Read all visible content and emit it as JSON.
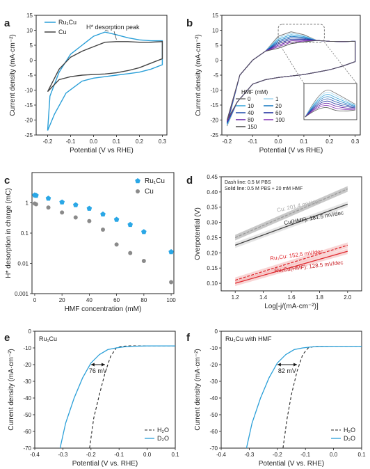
{
  "colors": {
    "blue": "#2a9fd8",
    "gray": "#444444",
    "lightgray": "#9a9a9a",
    "red": "#e0282e",
    "ruPoint": "#2aa7e6",
    "cuPoint": "#8a8a8a"
  },
  "chart_data": [
    {
      "panel_label": "a",
      "type": "line",
      "xlabel": "Potential (V vs RHE)",
      "ylabel": "Current density (mA·cm⁻²)",
      "xlim": [
        -0.25,
        0.32
      ],
      "ylim": [
        -25,
        15
      ],
      "xticks": [
        "-0.2",
        "-0.1",
        "0.0",
        "0.1",
        "0.2",
        "0.3"
      ],
      "yticks": [
        "-25",
        "-20",
        "-15",
        "-10",
        "-5",
        "0",
        "5",
        "10",
        "15"
      ],
      "legend": [
        "Ru₁Cu",
        "Cu"
      ],
      "annotation": "H* desorption peak",
      "series": [
        {
          "name": "Ru₁Cu",
          "color": "blue",
          "x": [
            -0.2,
            -0.17,
            -0.12,
            -0.05,
            0.0,
            0.05,
            0.1,
            0.15,
            0.2,
            0.25,
            0.3,
            0.3,
            0.25,
            0.2,
            0.15,
            0.1,
            0.05,
            0.0,
            -0.05,
            -0.1,
            -0.15,
            -0.19,
            -0.2
          ],
          "y": [
            -23.5,
            -18,
            -11,
            -7,
            -6,
            -5.5,
            -5,
            -4.5,
            -4,
            -3,
            -1.5,
            6.5,
            6.5,
            6.8,
            7.5,
            8.5,
            9.4,
            8,
            5,
            2,
            -4,
            -12,
            -23.5
          ]
        },
        {
          "name": "Cu",
          "color": "gray",
          "x": [
            -0.2,
            -0.15,
            -0.1,
            -0.05,
            0.0,
            0.05,
            0.1,
            0.15,
            0.2,
            0.25,
            0.3,
            0.3,
            0.25,
            0.2,
            0.15,
            0.1,
            0.05,
            0.0,
            -0.05,
            -0.1,
            -0.15,
            -0.2
          ],
          "y": [
            -10.5,
            -6.5,
            -5.5,
            -5,
            -4.8,
            -4.6,
            -4.2,
            -3.5,
            -2.5,
            -1,
            0.5,
            6.2,
            6,
            6,
            6.2,
            6.2,
            6,
            4.5,
            3,
            1,
            -3,
            -10.5
          ]
        }
      ]
    },
    {
      "panel_label": "b",
      "type": "line",
      "xlabel": "Potential (V vs RHE)",
      "ylabel": "Current density (mA·cm⁻²)",
      "xlim": [
        -0.22,
        0.32
      ],
      "ylim": [
        -25,
        15
      ],
      "xticks": [
        "-0.2",
        "-0.1",
        "0.0",
        "0.1",
        "0.2",
        "0.3"
      ],
      "yticks": [
        "-25",
        "-20",
        "-15",
        "-10",
        "-5",
        "0",
        "5",
        "10",
        "15"
      ],
      "legend_title": "HMF (mM)",
      "legend": [
        "0",
        "1",
        "10",
        "20",
        "40",
        "60",
        "80",
        "100",
        "150"
      ],
      "series_colors": [
        "#7a7a7a",
        "#a6d8f0",
        "#3da9de",
        "#1f7fc4",
        "#2a55b0",
        "#2233a0",
        "#6a2aa8",
        "#8a3ab8",
        "#555555"
      ]
    },
    {
      "panel_label": "c",
      "type": "scatter",
      "xlabel": "HMF concentration (mM)",
      "ylabel": "H* desorption in charge (mC)",
      "xlim": [
        -2,
        102
      ],
      "ylim": [
        0.001,
        10
      ],
      "yscale": "log",
      "xticks": [
        "0",
        "20",
        "40",
        "60",
        "80",
        "100"
      ],
      "yticks": [
        "0.001",
        "0.01",
        "0.1",
        "1"
      ],
      "legend": [
        "Ru₁Cu",
        "Cu"
      ],
      "series": [
        {
          "name": "Ru₁Cu",
          "x": [
            0,
            1,
            10,
            20,
            30,
            40,
            50,
            60,
            70,
            80,
            100
          ],
          "y": [
            1.8,
            1.75,
            1.4,
            1.05,
            0.85,
            0.65,
            0.42,
            0.28,
            0.19,
            0.11,
            0.024
          ]
        },
        {
          "name": "Cu",
          "x": [
            0,
            1,
            10,
            20,
            30,
            40,
            50,
            60,
            70,
            80,
            100
          ],
          "y": [
            0.95,
            0.9,
            0.7,
            0.48,
            0.33,
            0.25,
            0.13,
            0.042,
            0.022,
            0.012,
            0.0024
          ]
        }
      ]
    },
    {
      "panel_label": "d",
      "type": "line",
      "xlabel": "Log[-j/(mA·cm⁻²)]",
      "ylabel": "Overpotential (V)",
      "xlim": [
        1.1,
        2.1
      ],
      "ylim": [
        0.075,
        0.45
      ],
      "xticks": [
        "1.2",
        "1.4",
        "1.6",
        "1.8",
        "2.0"
      ],
      "yticks": [
        "0.10",
        "0.15",
        "0.20",
        "0.25",
        "0.30",
        "0.35",
        "0.40",
        "0.45"
      ],
      "note1": "Dash line: 0.5 M PBS",
      "note2": "Solid line: 0.5 M PBS + 20 mM HMF",
      "labels": [
        "Cu: 201.4 mV/dec",
        "Cu(HMF): 181.5 mV/dec",
        "Ru₁Cu: 152.5 mV/dec",
        "Ru₁Cu(HMF): 128.5 mV/dec"
      ],
      "series": [
        {
          "name": "Cu",
          "x": [
            1.2,
            2.0
          ],
          "y": [
            0.25,
            0.41
          ],
          "color": "lightgray",
          "dash": true
        },
        {
          "name": "Cu(HMF)",
          "x": [
            1.2,
            2.0
          ],
          "y": [
            0.225,
            0.36
          ],
          "color": "gray",
          "dash": false
        },
        {
          "name": "Ru₁Cu",
          "x": [
            1.2,
            2.0
          ],
          "y": [
            0.11,
            0.225
          ],
          "color": "red",
          "dash": true
        },
        {
          "name": "Ru₁Cu(HMF)",
          "x": [
            1.2,
            2.0
          ],
          "y": [
            0.1,
            0.205
          ],
          "color": "red",
          "dash": false
        }
      ]
    },
    {
      "panel_label": "e",
      "type": "line",
      "inner_label": "Ru₁Cu",
      "xlabel": "Potential (V vs. RHE)",
      "ylabel": "Current density (mA·cm⁻²)",
      "xlim": [
        -0.4,
        0.1
      ],
      "ylim": [
        -70,
        0
      ],
      "xticks": [
        "-0.4",
        "-0.3",
        "-0.2",
        "-0.1",
        "0.0",
        "0.1"
      ],
      "yticks": [
        "-70",
        "-60",
        "-50",
        "-40",
        "-30",
        "-20",
        "-10",
        "0"
      ],
      "legend": [
        "H₂O",
        "D₂O"
      ],
      "delta_label": "76 mV",
      "series": [
        {
          "name": "H₂O",
          "x": [
            -0.205,
            -0.19,
            -0.17,
            -0.15,
            -0.13,
            -0.11,
            -0.09,
            -0.06,
            -0.03,
            0.0,
            0.05,
            0.1
          ],
          "y": [
            -70,
            -52,
            -38,
            -25,
            -15,
            -10,
            -9,
            -8.8,
            -8.8,
            -8.8,
            -8.8,
            -8.8
          ]
        },
        {
          "name": "D₂O",
          "x": [
            -0.31,
            -0.29,
            -0.26,
            -0.23,
            -0.2,
            -0.17,
            -0.14,
            -0.11,
            -0.08,
            -0.05,
            0.0,
            0.05,
            0.1
          ],
          "y": [
            -70,
            -55,
            -40,
            -28,
            -19,
            -14,
            -11,
            -10,
            -9.3,
            -9,
            -8.8,
            -8.8,
            -8.8
          ]
        }
      ]
    },
    {
      "panel_label": "f",
      "type": "line",
      "inner_label": "Ru₁Cu with HMF",
      "xlabel": "Potential (V vs. RHE)",
      "ylabel": "Current density (mA·cm⁻²)",
      "xlim": [
        -0.4,
        0.1
      ],
      "ylim": [
        -70,
        0
      ],
      "xticks": [
        "-0.4",
        "-0.3",
        "-0.2",
        "-0.1",
        "0.0",
        "0.1"
      ],
      "yticks": [
        "-70",
        "-60",
        "-50",
        "-40",
        "-30",
        "-20",
        "-10",
        "0"
      ],
      "legend": [
        "H₂O",
        "D₂O"
      ],
      "delta_label": "82 mV",
      "series": [
        {
          "name": "H₂O",
          "x": [
            -0.18,
            -0.165,
            -0.15,
            -0.13,
            -0.11,
            -0.09,
            -0.07,
            -0.05,
            -0.02,
            0.0,
            0.05,
            0.1
          ],
          "y": [
            -70,
            -52,
            -38,
            -24,
            -14,
            -10,
            -9.2,
            -9,
            -9,
            -9,
            -9,
            -9
          ]
        },
        {
          "name": "D₂O",
          "x": [
            -0.31,
            -0.29,
            -0.26,
            -0.23,
            -0.2,
            -0.17,
            -0.14,
            -0.11,
            -0.08,
            -0.05,
            0.0,
            0.05,
            0.1
          ],
          "y": [
            -70,
            -55,
            -40,
            -28,
            -19,
            -14,
            -11,
            -10,
            -9.4,
            -9.1,
            -9,
            -9,
            -9
          ]
        }
      ]
    }
  ]
}
